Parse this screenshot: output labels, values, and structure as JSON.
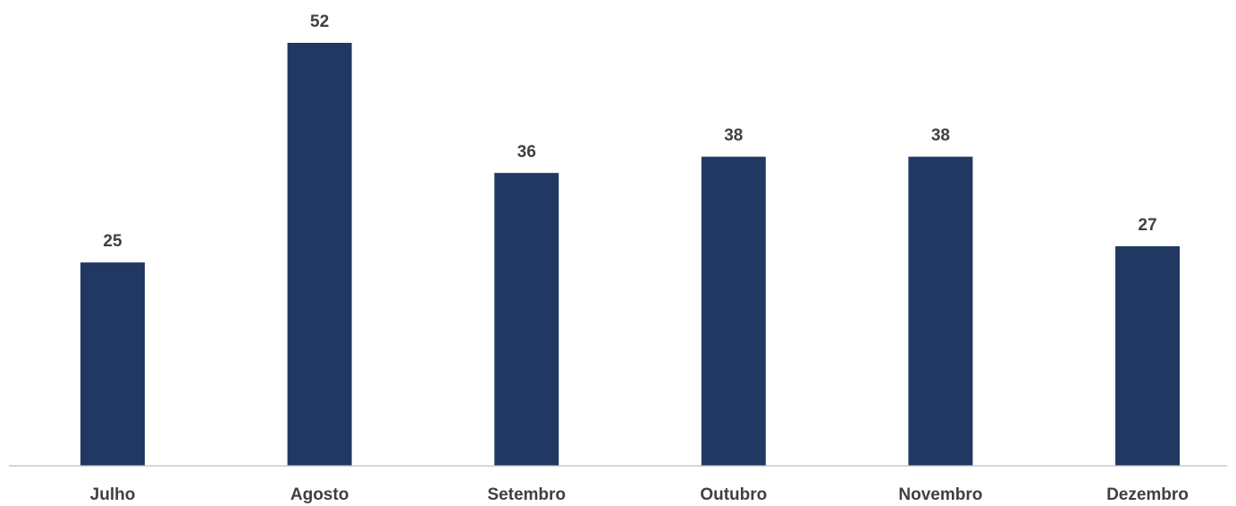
{
  "chart_data": {
    "type": "bar",
    "categories": [
      "Julho",
      "Agosto",
      "Setembro",
      "Outubro",
      "Novembro",
      "Dezembro"
    ],
    "values": [
      25,
      52,
      36,
      38,
      38,
      27
    ],
    "title": "",
    "xlabel": "",
    "ylabel": "",
    "ylim": [
      0,
      52
    ],
    "grid": false,
    "legend": "none",
    "colors": {
      "bar": "#213862",
      "axis": "#bfbfbf",
      "text": "#404040"
    }
  }
}
